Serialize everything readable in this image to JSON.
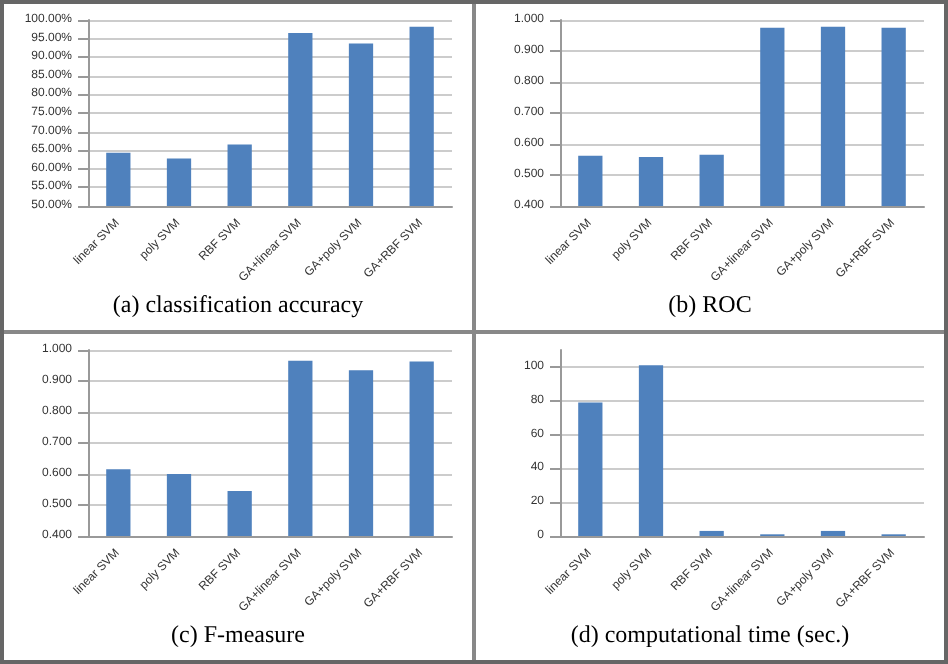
{
  "chart_data": [
    {
      "type": "bar",
      "title": "(a) classification accuracy",
      "categories": [
        "linear SVM",
        "poly SVM",
        "RBF SVM",
        "GA+linear SVM",
        "GA+poly SVM",
        "GA+RBF SVM"
      ],
      "values": [
        64.3,
        62.8,
        66.5,
        96.5,
        93.7,
        98.2
      ],
      "color": "#4f81bd",
      "ylim": [
        50,
        100
      ],
      "yticks": [
        {
          "value": 50,
          "label": "50.00%"
        },
        {
          "value": 55,
          "label": "55.00%"
        },
        {
          "value": 60,
          "label": "60.00%"
        },
        {
          "value": 65,
          "label": "65.00%"
        },
        {
          "value": 70,
          "label": "70.00%"
        },
        {
          "value": 75,
          "label": "75.00%"
        },
        {
          "value": 80,
          "label": "80.00%"
        },
        {
          "value": 85,
          "label": "85.00%"
        },
        {
          "value": 90,
          "label": "90.00%"
        },
        {
          "value": 95,
          "label": "95.00%"
        },
        {
          "value": 100,
          "label": "100.00%"
        }
      ],
      "grid": "y"
    },
    {
      "type": "bar",
      "title": "(b) ROC",
      "categories": [
        "linear SVM",
        "poly SVM",
        "RBF SVM",
        "GA+linear SVM",
        "GA+poly SVM",
        "GA+RBF SVM"
      ],
      "values": [
        0.562,
        0.558,
        0.565,
        0.975,
        0.978,
        0.975
      ],
      "color": "#4f81bd",
      "ylim": [
        0.4,
        1.0
      ],
      "yticks": [
        {
          "value": 0.4,
          "label": "0.400"
        },
        {
          "value": 0.5,
          "label": "0.500"
        },
        {
          "value": 0.6,
          "label": "0.600"
        },
        {
          "value": 0.7,
          "label": "0.700"
        },
        {
          "value": 0.8,
          "label": "0.800"
        },
        {
          "value": 0.9,
          "label": "0.900"
        },
        {
          "value": 1.0,
          "label": "1.000"
        }
      ],
      "grid": "y"
    },
    {
      "type": "bar",
      "title": "(c) F-measure",
      "categories": [
        "linear SVM",
        "poly SVM",
        "RBF SVM",
        "GA+linear SVM",
        "GA+poly SVM",
        "GA+RBF SVM"
      ],
      "values": [
        0.615,
        0.6,
        0.545,
        0.965,
        0.935,
        0.963
      ],
      "color": "#4f81bd",
      "ylim": [
        0.4,
        1.0
      ],
      "yticks": [
        {
          "value": 0.4,
          "label": "0.400"
        },
        {
          "value": 0.5,
          "label": "0.500"
        },
        {
          "value": 0.6,
          "label": "0.600"
        },
        {
          "value": 0.7,
          "label": "0.700"
        },
        {
          "value": 0.8,
          "label": "0.800"
        },
        {
          "value": 0.9,
          "label": "0.900"
        },
        {
          "value": 1.0,
          "label": "1.000"
        }
      ],
      "grid": "y"
    },
    {
      "type": "bar",
      "title": "(d) computational time (sec.)",
      "categories": [
        "linear SVM",
        "poly SVM",
        "RBF SVM",
        "GA+linear SVM",
        "GA+poly SVM",
        "GA+RBF SVM"
      ],
      "values": [
        79,
        101,
        3,
        1,
        3,
        1
      ],
      "color": "#4f81bd",
      "ylim": [
        0,
        110
      ],
      "yticks": [
        0,
        20,
        40,
        60,
        80,
        100
      ],
      "grid": "y"
    }
  ]
}
